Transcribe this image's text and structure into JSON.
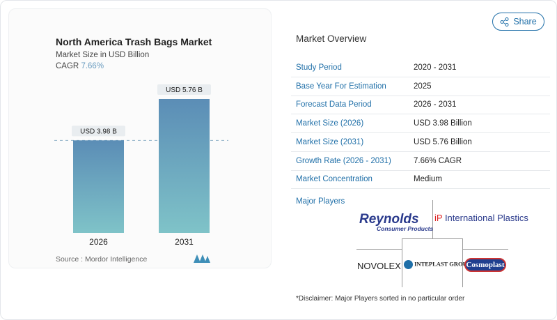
{
  "header": {
    "share_label": "Share"
  },
  "chart_data": {
    "type": "bar",
    "title": "North America Trash Bags Market",
    "subtitle": "Market Size in USD Billion",
    "cagr_label": "CAGR",
    "cagr_value": "7.66%",
    "categories": [
      "2026",
      "2031"
    ],
    "values": [
      3.98,
      5.76
    ],
    "data_labels": [
      "USD 3.98 B",
      "USD 5.76 B"
    ],
    "ylim": [
      0,
      6.9
    ],
    "colors": {
      "top": "#5b8db6",
      "bottom": "#7fc3c8"
    },
    "source": "Source :  Mordor Intelligence"
  },
  "overview": {
    "title": "Market Overview",
    "rows": [
      {
        "label": "Study Period",
        "value": "2020 - 2031"
      },
      {
        "label": "Base Year For Estimation",
        "value": "2025"
      },
      {
        "label": "Forecast Data Period",
        "value": "2026 - 2031"
      },
      {
        "label": "Market Size (2026)",
        "value": "USD 3.98 Billion"
      },
      {
        "label": "Market Size (2031)",
        "value": "USD 5.76 Billion"
      },
      {
        "label": "Growth Rate (2026 - 2031)",
        "value": "7.66% CAGR"
      },
      {
        "label": "Market Concentration",
        "value": "Medium"
      }
    ],
    "major_players_label": "Major Players",
    "players": [
      "Reynolds Consumer Products",
      "International Plastics",
      "Novolex",
      "Inteplast Group",
      "Cosmoplast"
    ],
    "disclaimer": "*Disclaimer: Major Players sorted in no particular order"
  }
}
